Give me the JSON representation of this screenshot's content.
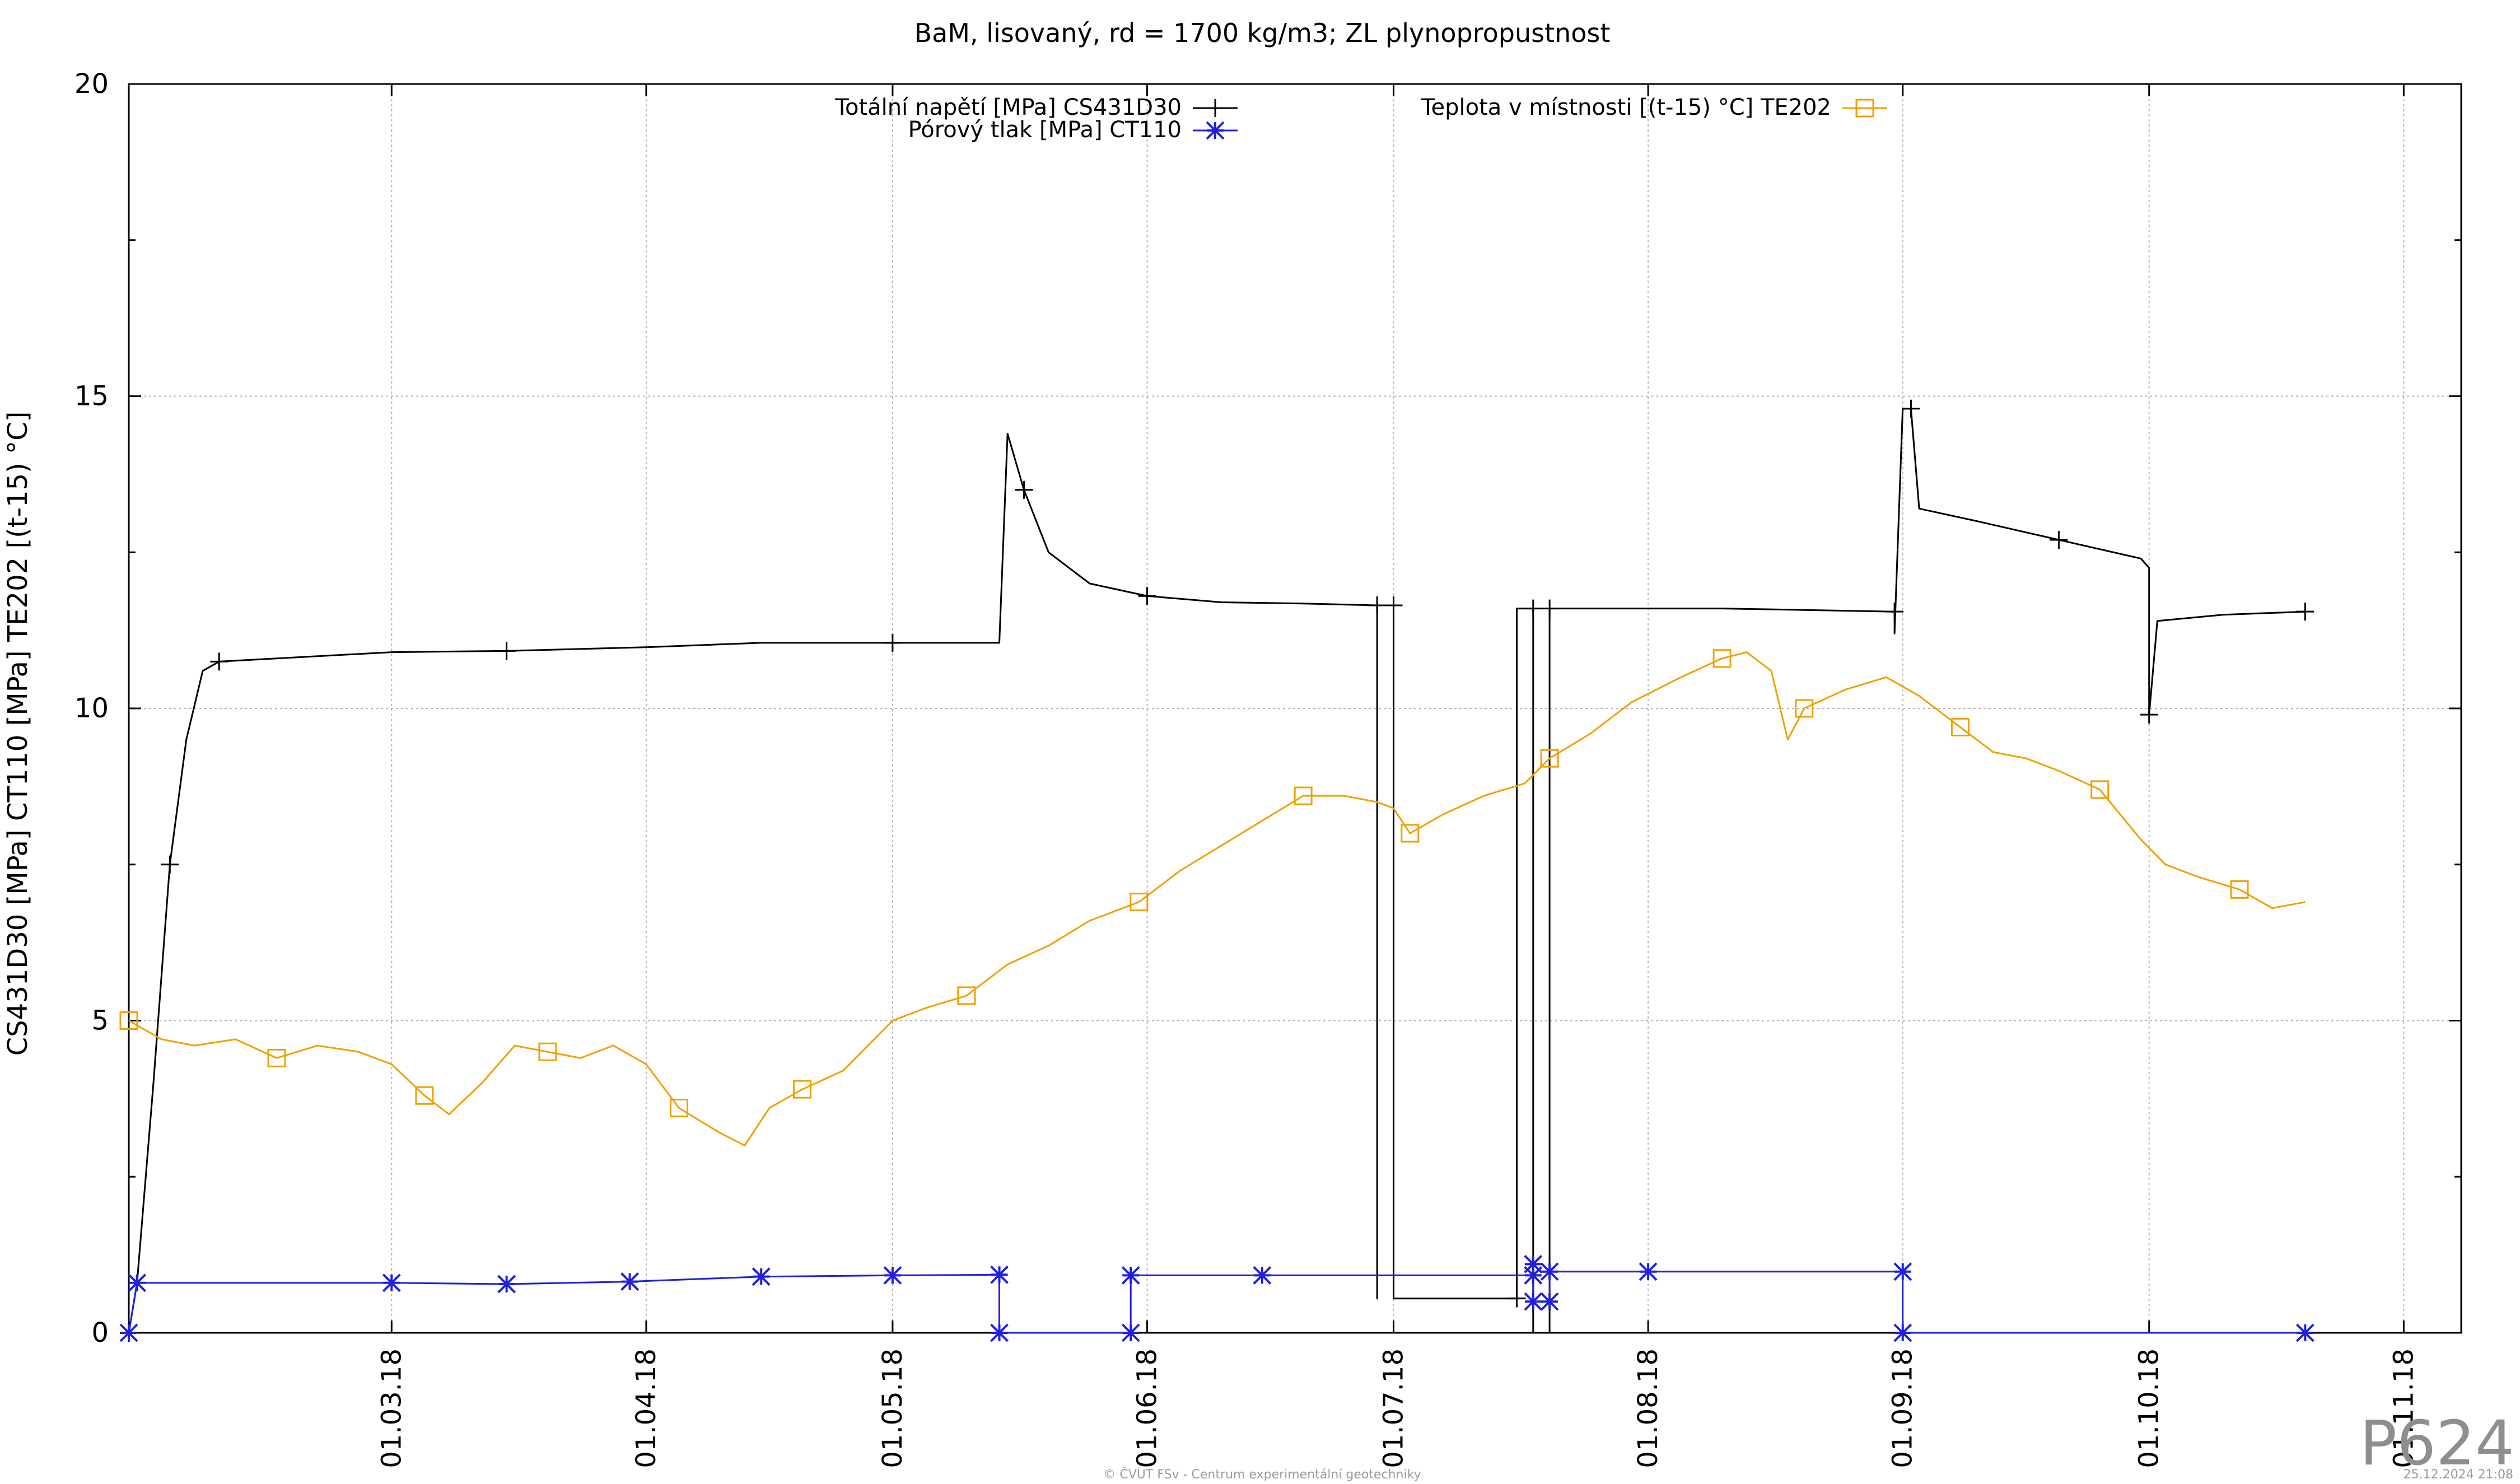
{
  "chart_data": {
    "type": "line",
    "title": "BaM, lisovaný, rd = 1700 kg/m3; ZL plynopropustnost",
    "ylabel": "CS431D30 [MPa] CT110 [MPa] TE202 [(t-15) °C]",
    "xlabel": "",
    "ylim": [
      0,
      20
    ],
    "xlim": [
      "2018-01-28",
      "2018-11-08"
    ],
    "yticks": [
      "0",
      "5",
      "10",
      "15",
      "20"
    ],
    "xticks": [
      "01.03.18",
      "01.04.18",
      "01.05.18",
      "01.06.18",
      "01.07.18",
      "01.08.18",
      "01.09.18",
      "01.10.18",
      "01.11.18"
    ],
    "grid": true,
    "legend_position": "top",
    "series": [
      {
        "name": "Totální napětí [MPa] CS431D30",
        "color": "#000000",
        "marker": "plus",
        "points": [
          [
            "2018-01-28",
            0.0
          ],
          [
            "2018-01-29",
            0.8
          ],
          [
            "2018-01-31",
            4.0
          ],
          [
            "2018-02-02",
            7.5
          ],
          [
            "2018-02-04",
            9.5
          ],
          [
            "2018-02-06",
            10.6
          ],
          [
            "2018-02-08",
            10.75
          ],
          [
            "2018-02-15",
            10.8
          ],
          [
            "2018-03-01",
            10.9
          ],
          [
            "2018-03-15",
            10.92
          ],
          [
            "2018-04-01",
            10.98
          ],
          [
            "2018-04-15",
            11.05
          ],
          [
            "2018-05-01",
            11.05
          ],
          [
            "2018-05-14",
            11.05
          ],
          [
            "2018-05-15",
            14.4
          ],
          [
            "2018-05-17",
            13.5
          ],
          [
            "2018-05-20",
            12.5
          ],
          [
            "2018-05-25",
            12.0
          ],
          [
            "2018-06-01",
            11.8
          ],
          [
            "2018-06-10",
            11.7
          ],
          [
            "2018-06-20",
            11.68
          ],
          [
            "2018-06-29",
            11.65
          ],
          [
            "2018-06-29",
            0.55
          ],
          [
            "2018-06-29",
            11.65
          ],
          [
            "2018-07-01",
            11.65
          ],
          [
            "2018-07-01",
            0.55
          ],
          [
            "2018-07-08",
            0.55
          ],
          [
            "2018-07-16",
            0.55
          ],
          [
            "2018-07-16",
            11.6
          ],
          [
            "2018-07-17",
            11.6
          ],
          [
            "2018-07-18",
            11.6
          ],
          [
            "2018-07-18",
            0.0
          ],
          [
            "2018-07-20",
            0.0
          ],
          [
            "2018-07-20",
            11.6
          ],
          [
            "2018-07-25",
            11.6
          ],
          [
            "2018-08-10",
            11.6
          ],
          [
            "2018-08-31",
            11.55
          ],
          [
            "2018-08-31",
            11.2
          ],
          [
            "2018-09-01",
            14.8
          ],
          [
            "2018-09-02",
            14.8
          ],
          [
            "2018-09-03",
            13.2
          ],
          [
            "2018-09-10",
            13.0
          ],
          [
            "2018-09-20",
            12.7
          ],
          [
            "2018-09-30",
            12.4
          ],
          [
            "2018-10-01",
            12.25
          ],
          [
            "2018-10-01",
            9.9
          ],
          [
            "2018-10-02",
            11.4
          ],
          [
            "2018-10-10",
            11.5
          ],
          [
            "2018-10-20",
            11.55
          ]
        ]
      },
      {
        "name": "Pórový tlak [MPa] CT110",
        "color": "#1f1fdd",
        "marker": "star",
        "points": [
          [
            "2018-01-28",
            0.0
          ],
          [
            "2018-01-29",
            0.8
          ],
          [
            "2018-03-01",
            0.8
          ],
          [
            "2018-03-15",
            0.78
          ],
          [
            "2018-03-30",
            0.82
          ],
          [
            "2018-04-15",
            0.9
          ],
          [
            "2018-05-01",
            0.92
          ],
          [
            "2018-05-14",
            0.93
          ],
          [
            "2018-05-14",
            0.0
          ],
          [
            "2018-05-30",
            0.0
          ],
          [
            "2018-05-30",
            0.92
          ],
          [
            "2018-06-15",
            0.92
          ],
          [
            "2018-07-18",
            0.92
          ],
          [
            "2018-07-18",
            1.1
          ],
          [
            "2018-07-18",
            0.5
          ],
          [
            "2018-07-20",
            0.5
          ],
          [
            "2018-07-20",
            0.98
          ],
          [
            "2018-08-01",
            0.98
          ],
          [
            "2018-09-01",
            0.98
          ],
          [
            "2018-09-01",
            0.0
          ],
          [
            "2018-10-20",
            0.0
          ]
        ]
      },
      {
        "name": "Teplota v místnosti [(t-15) °C] TE202",
        "color": "#f0a000",
        "marker": "square",
        "points": [
          [
            "2018-01-28",
            5.0
          ],
          [
            "2018-02-01",
            4.7
          ],
          [
            "2018-02-05",
            4.6
          ],
          [
            "2018-02-10",
            4.7
          ],
          [
            "2018-02-15",
            4.4
          ],
          [
            "2018-02-20",
            4.6
          ],
          [
            "2018-02-25",
            4.5
          ],
          [
            "2018-03-01",
            4.3
          ],
          [
            "2018-03-05",
            3.8
          ],
          [
            "2018-03-08",
            3.5
          ],
          [
            "2018-03-12",
            4.0
          ],
          [
            "2018-03-16",
            4.6
          ],
          [
            "2018-03-20",
            4.5
          ],
          [
            "2018-03-24",
            4.4
          ],
          [
            "2018-03-28",
            4.6
          ],
          [
            "2018-04-01",
            4.3
          ],
          [
            "2018-04-05",
            3.6
          ],
          [
            "2018-04-10",
            3.2
          ],
          [
            "2018-04-13",
            3.0
          ],
          [
            "2018-04-16",
            3.6
          ],
          [
            "2018-04-20",
            3.9
          ],
          [
            "2018-04-25",
            4.2
          ],
          [
            "2018-05-01",
            5.0
          ],
          [
            "2018-05-05",
            5.2
          ],
          [
            "2018-05-10",
            5.4
          ],
          [
            "2018-05-15",
            5.9
          ],
          [
            "2018-05-20",
            6.2
          ],
          [
            "2018-05-25",
            6.6
          ],
          [
            "2018-05-31",
            6.9
          ],
          [
            "2018-06-05",
            7.4
          ],
          [
            "2018-06-10",
            7.8
          ],
          [
            "2018-06-15",
            8.2
          ],
          [
            "2018-06-20",
            8.6
          ],
          [
            "2018-06-25",
            8.6
          ],
          [
            "2018-06-29",
            8.5
          ],
          [
            "2018-07-01",
            8.4
          ],
          [
            "2018-07-03",
            8.0
          ],
          [
            "2018-07-07",
            8.3
          ],
          [
            "2018-07-12",
            8.6
          ],
          [
            "2018-07-17",
            8.8
          ],
          [
            "2018-07-20",
            9.2
          ],
          [
            "2018-07-25",
            9.6
          ],
          [
            "2018-07-30",
            10.1
          ],
          [
            "2018-08-05",
            10.5
          ],
          [
            "2018-08-10",
            10.8
          ],
          [
            "2018-08-13",
            10.9
          ],
          [
            "2018-08-16",
            10.6
          ],
          [
            "2018-08-18",
            9.5
          ],
          [
            "2018-08-20",
            10.0
          ],
          [
            "2018-08-25",
            10.3
          ],
          [
            "2018-08-30",
            10.5
          ],
          [
            "2018-09-03",
            10.2
          ],
          [
            "2018-09-08",
            9.7
          ],
          [
            "2018-09-12",
            9.3
          ],
          [
            "2018-09-16",
            9.2
          ],
          [
            "2018-09-20",
            9.0
          ],
          [
            "2018-09-25",
            8.7
          ],
          [
            "2018-09-30",
            7.9
          ],
          [
            "2018-10-03",
            7.5
          ],
          [
            "2018-10-07",
            7.3
          ],
          [
            "2018-10-12",
            7.1
          ],
          [
            "2018-10-16",
            6.8
          ],
          [
            "2018-10-20",
            6.9
          ]
        ]
      }
    ]
  },
  "footer": {
    "copyright": "© ČVUT FSv - Centrum experimentální geotechniky",
    "timestamp": "25.12.2024 21:08",
    "tag": "P624"
  }
}
